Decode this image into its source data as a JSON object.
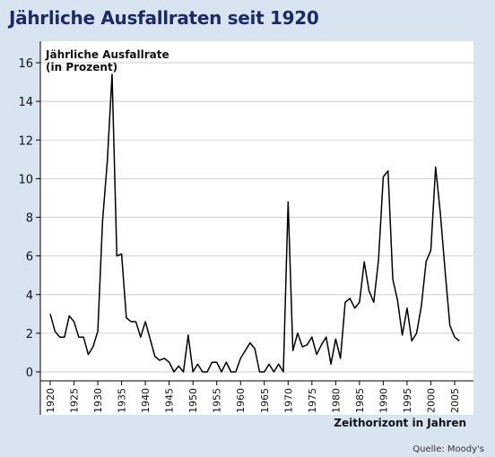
{
  "title": "Jährliche Ausfallraten seit 1920",
  "source": "Quelle: Moody's",
  "chart_data": {
    "type": "line",
    "ylabel_line1": "Jährliche Ausfallrate",
    "ylabel_line2": "(in Prozent)",
    "xlabel": "Zeithorizont in Jahren",
    "ylim": [
      0,
      16
    ],
    "yticks": [
      0,
      2,
      4,
      6,
      8,
      10,
      12,
      14,
      16
    ],
    "xlim": [
      1918,
      2008
    ],
    "xticks": [
      1920,
      1925,
      1930,
      1935,
      1940,
      1945,
      1950,
      1955,
      1960,
      1965,
      1970,
      1975,
      1980,
      1985,
      1990,
      1995,
      2000,
      2005
    ],
    "grid": true,
    "line_color": "#000000",
    "x": [
      1920,
      1921,
      1922,
      1923,
      1924,
      1925,
      1926,
      1927,
      1928,
      1929,
      1930,
      1931,
      1932,
      1933,
      1934,
      1935,
      1936,
      1937,
      1938,
      1939,
      1940,
      1941,
      1942,
      1943,
      1944,
      1945,
      1946,
      1947,
      1948,
      1949,
      1950,
      1951,
      1952,
      1953,
      1954,
      1955,
      1956,
      1957,
      1958,
      1959,
      1960,
      1961,
      1962,
      1963,
      1964,
      1965,
      1966,
      1967,
      1968,
      1969,
      1970,
      1971,
      1972,
      1973,
      1974,
      1975,
      1976,
      1977,
      1978,
      1979,
      1980,
      1981,
      1982,
      1983,
      1984,
      1985,
      1986,
      1987,
      1988,
      1989,
      1990,
      1991,
      1992,
      1993,
      1994,
      1995,
      1996,
      1997,
      1998,
      1999,
      2000,
      2001,
      2002,
      2003,
      2004,
      2005,
      2006
    ],
    "y": [
      3.0,
      2.1,
      1.8,
      1.8,
      2.9,
      2.6,
      1.8,
      1.8,
      0.9,
      1.3,
      2.1,
      7.8,
      10.9,
      15.4,
      6.0,
      6.1,
      2.8,
      2.6,
      2.6,
      1.8,
      2.6,
      1.7,
      0.8,
      0.6,
      0.7,
      0.5,
      0.0,
      0.3,
      0.0,
      1.9,
      0.0,
      0.4,
      0.0,
      0.0,
      0.5,
      0.5,
      0.0,
      0.5,
      0.0,
      0.0,
      0.7,
      1.1,
      1.5,
      1.2,
      0.0,
      0.0,
      0.4,
      0.0,
      0.4,
      0.0,
      8.8,
      1.1,
      2.0,
      1.3,
      1.4,
      1.8,
      0.9,
      1.4,
      1.8,
      0.4,
      1.7,
      0.7,
      3.6,
      3.8,
      3.3,
      3.6,
      5.7,
      4.2,
      3.6,
      5.8,
      10.1,
      10.4,
      4.8,
      3.7,
      1.9,
      3.3,
      1.6,
      2.0,
      3.4,
      5.7,
      6.3,
      10.6,
      8.2,
      5.2,
      2.4,
      1.8,
      1.6
    ]
  }
}
